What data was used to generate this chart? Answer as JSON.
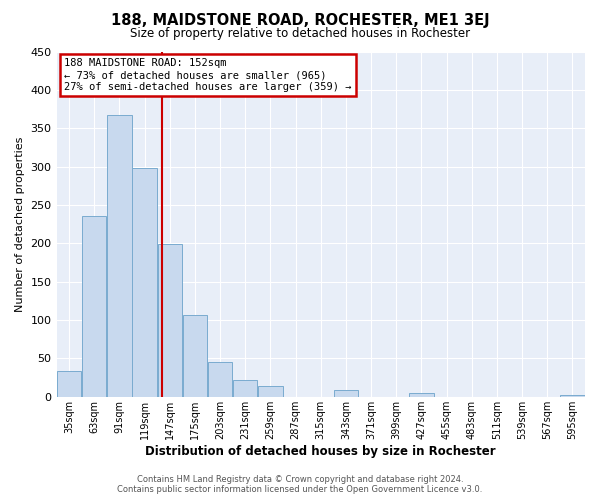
{
  "title": "188, MAIDSTONE ROAD, ROCHESTER, ME1 3EJ",
  "subtitle": "Size of property relative to detached houses in Rochester",
  "xlabel": "Distribution of detached houses by size in Rochester",
  "ylabel": "Number of detached properties",
  "bar_color": "#c8d9ee",
  "bar_edge_color": "#7aabcf",
  "background_color": "#e8eef8",
  "grid_color": "#ffffff",
  "categories": [
    "35sqm",
    "63sqm",
    "91sqm",
    "119sqm",
    "147sqm",
    "175sqm",
    "203sqm",
    "231sqm",
    "259sqm",
    "287sqm",
    "315sqm",
    "343sqm",
    "371sqm",
    "399sqm",
    "427sqm",
    "455sqm",
    "483sqm",
    "511sqm",
    "539sqm",
    "567sqm",
    "595sqm"
  ],
  "values": [
    33,
    235,
    367,
    298,
    199,
    106,
    45,
    22,
    14,
    0,
    0,
    9,
    0,
    0,
    5,
    0,
    0,
    0,
    0,
    0,
    2
  ],
  "ylim": [
    0,
    450
  ],
  "yticks": [
    0,
    50,
    100,
    150,
    200,
    250,
    300,
    350,
    400,
    450
  ],
  "vline_color": "#cc0000",
  "annotation_title": "188 MAIDSTONE ROAD: 152sqm",
  "annotation_line1": "← 73% of detached houses are smaller (965)",
  "annotation_line2": "27% of semi-detached houses are larger (359) →",
  "annotation_box_color": "#cc0000",
  "footer_line1": "Contains HM Land Registry data © Crown copyright and database right 2024.",
  "footer_line2": "Contains public sector information licensed under the Open Government Licence v3.0."
}
